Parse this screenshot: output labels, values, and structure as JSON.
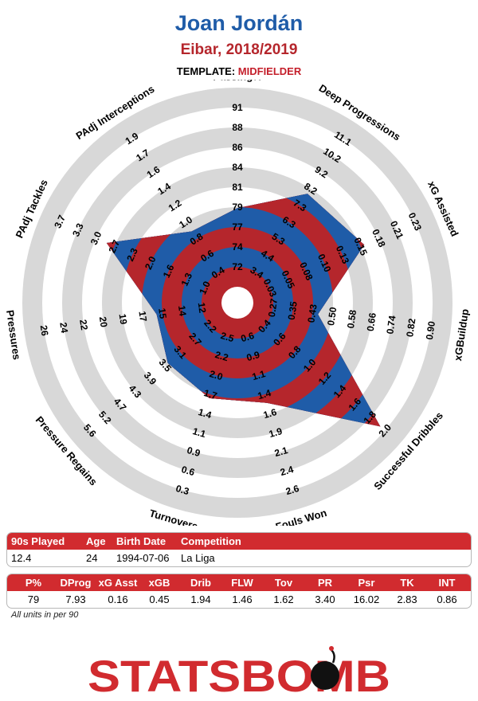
{
  "header": {
    "player": "Joan Jordán",
    "team_season": "Eibar, 2018/2019",
    "template_label": "TEMPLATE:",
    "template_value": "MIDFIELDER"
  },
  "colors": {
    "blue": "#1f5ca8",
    "red": "#b5262c",
    "ring_gray": "#d8d8d8",
    "header_red": "#d12b2f"
  },
  "chart_data": {
    "type": "radar",
    "rings": 5,
    "metrics": [
      {
        "name": "Passing%",
        "ticks": [
          "72",
          "74",
          "77",
          "79",
          "81",
          "84",
          "86",
          "88",
          "91"
        ],
        "value": 79
      },
      {
        "name": "Deep Progressions",
        "ticks": [
          "3.4",
          "4.4",
          "5.3",
          "6.3",
          "7.3",
          "8.2",
          "9.2",
          "10.2",
          "11.1"
        ],
        "value": 7.93
      },
      {
        "name": "xG Assisted",
        "ticks": [
          "0.03",
          "0.05",
          "0.08",
          "0.10",
          "0.13",
          "0.15",
          "0.18",
          "0.21",
          "0.23"
        ],
        "value": 0.16
      },
      {
        "name": "xGBuildup",
        "ticks": [
          "0.27",
          "0.35",
          "0.43",
          "0.50",
          "0.58",
          "0.66",
          "0.74",
          "0.82",
          "0.90"
        ],
        "value": 0.45
      },
      {
        "name": "Successful Dribbles",
        "ticks": [
          "0.4",
          "0.6",
          "0.8",
          "1.0",
          "1.2",
          "1.4",
          "1.6",
          "1.8",
          "2.0"
        ],
        "value": 1.94
      },
      {
        "name": "Fouls Won",
        "ticks": [
          "0.6",
          "0.9",
          "1.1",
          "1.4",
          "1.6",
          "1.9",
          "2.1",
          "2.4",
          "2.6"
        ],
        "value": 1.46
      },
      {
        "name": "Turnovers",
        "ticks": [
          "2.5",
          "2.2",
          "2.0",
          "1.7",
          "1.4",
          "1.1",
          "0.9",
          "0.6",
          "0.3"
        ],
        "value": 1.62
      },
      {
        "name": "Pressure Regains",
        "ticks": [
          "2.2",
          "2.7",
          "3.1",
          "3.5",
          "3.9",
          "4.3",
          "4.7",
          "5.2",
          "5.6"
        ],
        "value": 3.4
      },
      {
        "name": "Pressures",
        "ticks": [
          "12",
          "14",
          "15",
          "17",
          "19",
          "20",
          "22",
          "24",
          "26"
        ],
        "value": 16.02
      },
      {
        "name": "PAdj Tackles",
        "ticks": [
          "1.0",
          "1.3",
          "1.6",
          "2.0",
          "2.3",
          "2.7",
          "3.0",
          "3.3",
          "3.7"
        ],
        "value": 2.83
      },
      {
        "name": "PAdj Interceptions",
        "ticks": [
          "0.4",
          "0.6",
          "0.8",
          "1.0",
          "1.2",
          "1.4",
          "1.6",
          "1.7",
          "1.9"
        ],
        "value": 0.86
      }
    ]
  },
  "table1": {
    "headers": [
      "90s Played",
      "Age",
      "Birth Date",
      "Competition"
    ],
    "values": [
      "12.4",
      "24",
      "1994-07-06",
      "La Liga"
    ]
  },
  "table2": {
    "headers": [
      "P%",
      "DProg",
      "xG Asst",
      "xGB",
      "Drib",
      "FLW",
      "Tov",
      "PR",
      "Psr",
      "TK",
      "INT"
    ],
    "values": [
      "79",
      "7.93",
      "0.16",
      "0.45",
      "1.94",
      "1.46",
      "1.62",
      "3.40",
      "16.02",
      "2.83",
      "0.86"
    ]
  },
  "note": "All units in per 90",
  "logo": "STATSBOMB"
}
